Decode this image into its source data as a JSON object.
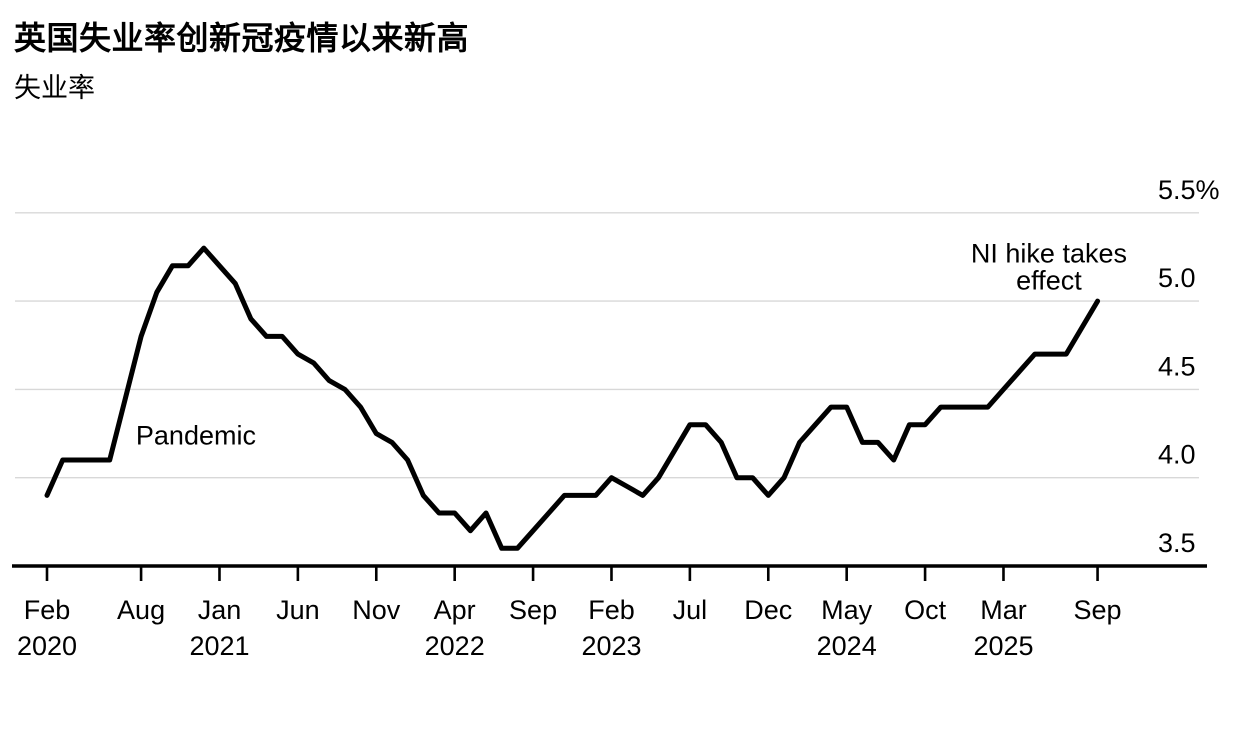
{
  "header": {
    "title": "英国失业率创新冠疫情以来新高",
    "subtitle": "失业率"
  },
  "chart_data": {
    "type": "line",
    "title": "英国失业率创新冠疫情以来新高",
    "subtitle": "失业率",
    "unit": "%",
    "frequency": "monthly",
    "start_month": "Feb 2020",
    "end_month": "Sep 2025",
    "ylim": [
      3.5,
      5.5
    ],
    "grid": true,
    "y_ticks": [
      {
        "value": 3.5,
        "label": "3.5"
      },
      {
        "value": 4.0,
        "label": "4.0"
      },
      {
        "value": 4.5,
        "label": "4.5"
      },
      {
        "value": 5.0,
        "label": "5.0"
      },
      {
        "value": 5.5,
        "label": "5.5%"
      }
    ],
    "x_ticks": [
      {
        "index": 0,
        "month": "Feb",
        "year": "2020"
      },
      {
        "index": 6,
        "month": "Aug"
      },
      {
        "index": 11,
        "month": "Jan",
        "year": "2021"
      },
      {
        "index": 16,
        "month": "Jun"
      },
      {
        "index": 21,
        "month": "Nov"
      },
      {
        "index": 26,
        "month": "Apr",
        "year": "2022"
      },
      {
        "index": 31,
        "month": "Sep"
      },
      {
        "index": 36,
        "month": "Feb",
        "year": "2023"
      },
      {
        "index": 41,
        "month": "Jul"
      },
      {
        "index": 46,
        "month": "Dec"
      },
      {
        "index": 51,
        "month": "May",
        "year": "2024"
      },
      {
        "index": 56,
        "month": "Oct"
      },
      {
        "index": 61,
        "month": "Mar",
        "year": "2025"
      },
      {
        "index": 67,
        "month": "Sep"
      }
    ],
    "series": [
      {
        "name": "UK unemployment rate",
        "values": [
          3.9,
          4.1,
          4.1,
          4.1,
          4.1,
          4.45,
          4.8,
          5.05,
          5.2,
          5.2,
          5.3,
          5.2,
          5.1,
          4.9,
          4.8,
          4.8,
          4.7,
          4.65,
          4.55,
          4.5,
          4.4,
          4.25,
          4.2,
          4.1,
          3.9,
          3.8,
          3.8,
          3.7,
          3.8,
          3.6,
          3.6,
          3.7,
          3.8,
          3.9,
          3.9,
          3.9,
          4.0,
          3.95,
          3.9,
          4.0,
          4.15,
          4.3,
          4.3,
          4.2,
          4.0,
          4.0,
          3.9,
          4.0,
          4.2,
          4.3,
          4.4,
          4.4,
          4.2,
          4.2,
          4.1,
          4.3,
          4.3,
          4.4,
          4.4,
          4.4,
          4.4,
          4.5,
          4.6,
          4.7,
          4.7,
          4.7,
          4.85,
          5.0
        ]
      }
    ],
    "annotations": [
      {
        "text_lines": [
          "Pandemic"
        ],
        "x_index": 9.5,
        "value": 4.24
      },
      {
        "text_lines": [
          "NI hike takes",
          "effect"
        ],
        "x_index": 63.9,
        "value": 5.19
      }
    ],
    "colors": {
      "line": "#000000",
      "grid": "#d8d8d8",
      "axis": "#000000",
      "text": "#000000",
      "background": "#ffffff"
    },
    "legend": "none"
  }
}
